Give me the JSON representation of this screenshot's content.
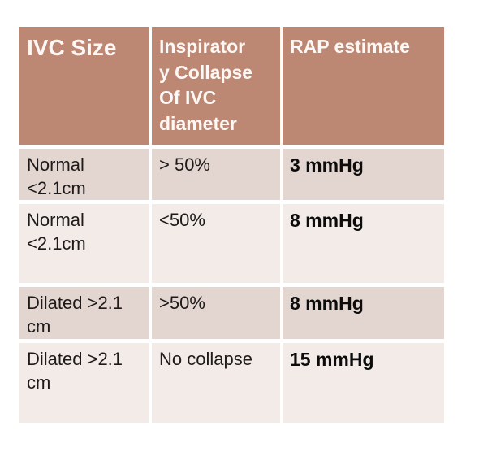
{
  "table": {
    "headers": [
      {
        "label": "IVC Size"
      },
      {
        "label": "Inspirator\ny Collapse\nOf IVC\ndiameter"
      },
      {
        "label": "RAP estimate"
      }
    ],
    "rows": [
      {
        "ivc_size": "Normal\n<2.1cm",
        "collapse": "> 50%",
        "rap": "3 mmHg"
      },
      {
        "ivc_size": "Normal\n<2.1cm",
        "collapse": "<50%",
        "rap": "8 mmHg"
      },
      {
        "ivc_size": "Dilated >2.1\ncm",
        "collapse": ">50%",
        "rap": "8 mmHg"
      },
      {
        "ivc_size": "Dilated >2.1\ncm",
        "collapse": "No collapse",
        "rap": "15 mmHg"
      }
    ]
  },
  "colors": {
    "header_bg": "#bd8873",
    "header_text": "#fdf8f5",
    "row_odd_bg": "#e3d5cf",
    "row_even_bg": "#f2ebe7",
    "body_text": "#1d1a19",
    "value_text": "#0d0c0c"
  }
}
